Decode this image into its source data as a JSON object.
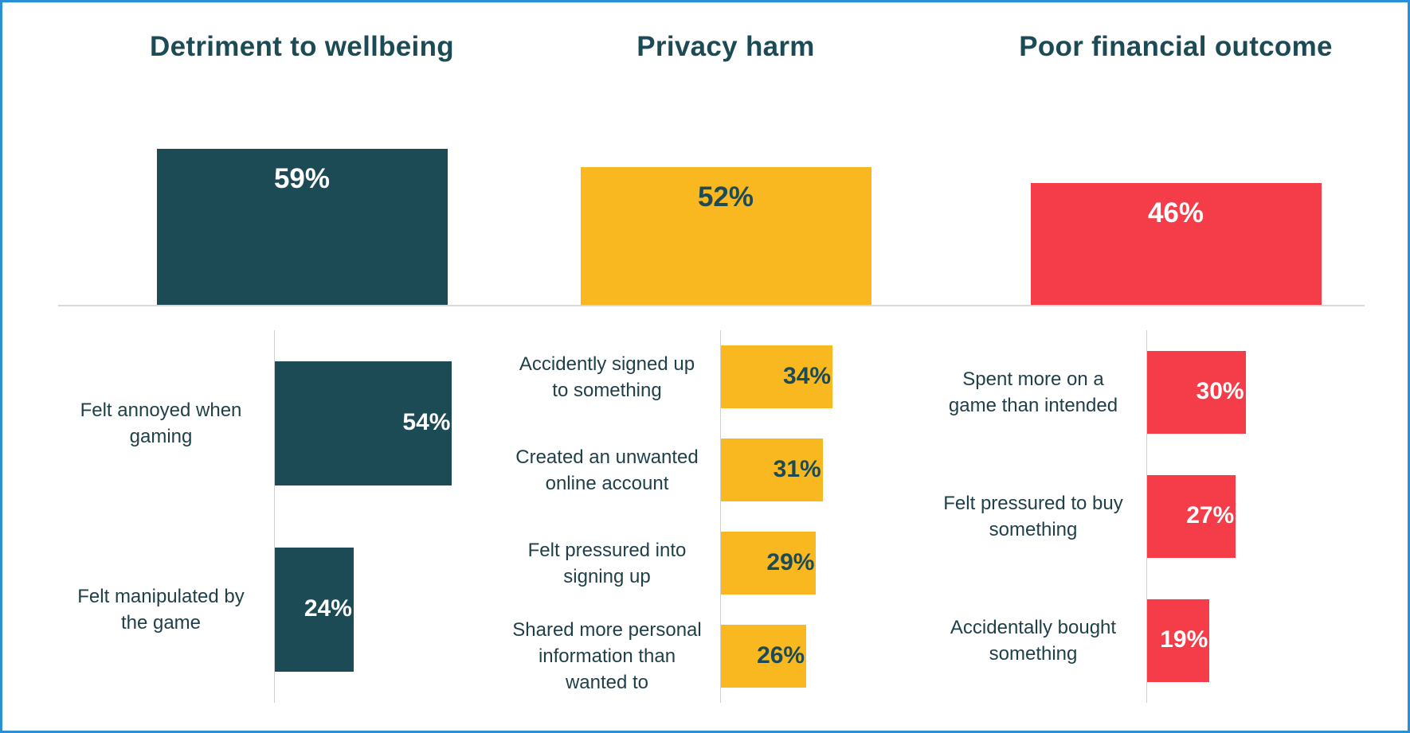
{
  "chart_data": [
    {
      "type": "bar",
      "title": "Detriment to wellbeing",
      "color": "#1c4a55",
      "label_color": "#ffffff",
      "total": 59,
      "total_label": "59%",
      "categories": [
        "Felt annoyed when gaming",
        "Felt manipulated by the game"
      ],
      "values": [
        54,
        24
      ],
      "value_labels": [
        "54%",
        "24%"
      ]
    },
    {
      "type": "bar",
      "title": "Privacy harm",
      "color": "#f9b820",
      "label_color": "#1c4a55",
      "total": 52,
      "total_label": "52%",
      "categories": [
        "Accidently signed up to something",
        "Created an unwanted online account",
        "Felt pressured into signing up",
        "Shared more personal information than wanted to"
      ],
      "values": [
        34,
        31,
        29,
        26
      ],
      "value_labels": [
        "34%",
        "31%",
        "29%",
        "26%"
      ]
    },
    {
      "type": "bar",
      "title": "Poor financial outcome",
      "color": "#f53d4a",
      "label_color": "#ffffff",
      "total": 46,
      "total_label": "46%",
      "categories": [
        "Spent more on a game than intended",
        "Felt pressured to buy something",
        "Accidentally bought something"
      ],
      "values": [
        30,
        27,
        19
      ],
      "value_labels": [
        "30%",
        "27%",
        "19%"
      ]
    }
  ]
}
